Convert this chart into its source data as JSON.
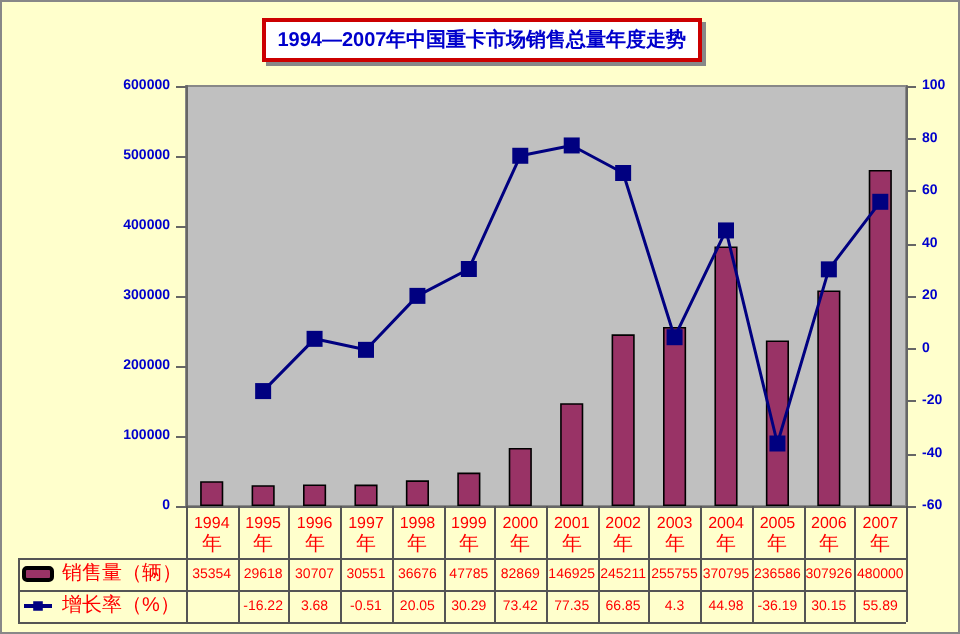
{
  "chart_data": {
    "type": "bar",
    "title": "1994—2007年中国重卡市场销售总量年度走势",
    "categories": [
      "1994年",
      "1995年",
      "1996年",
      "1997年",
      "1998年",
      "1999年",
      "2000年",
      "2001年",
      "2002年",
      "2003年",
      "2004年",
      "2005年",
      "2006年",
      "2007年"
    ],
    "series": [
      {
        "name": "销售量（辆）",
        "color": "#993366",
        "values": [
          35354,
          29618,
          30707,
          30551,
          36676,
          47785,
          82869,
          146925,
          245211,
          255755,
          370795,
          236586,
          307926,
          480000
        ]
      },
      {
        "name": "增长率（%）",
        "type": "line",
        "axis": "y2",
        "color": "#000080",
        "marker": "square",
        "values": [
          null,
          -16.22,
          3.68,
          -0.51,
          20.05,
          30.29,
          73.42,
          77.35,
          66.85,
          4.3,
          44.98,
          -36.19,
          30.15,
          55.89
        ]
      }
    ],
    "ylim": [
      0,
      600000
    ],
    "yticks": [
      0,
      100000,
      200000,
      300000,
      400000,
      500000,
      600000
    ],
    "y2lim": [
      -60,
      100
    ],
    "y2ticks": [
      -60,
      -40,
      -20,
      0,
      20,
      40,
      60,
      80,
      100
    ],
    "grid": false,
    "legend": "bottom",
    "data_labels": true
  }
}
